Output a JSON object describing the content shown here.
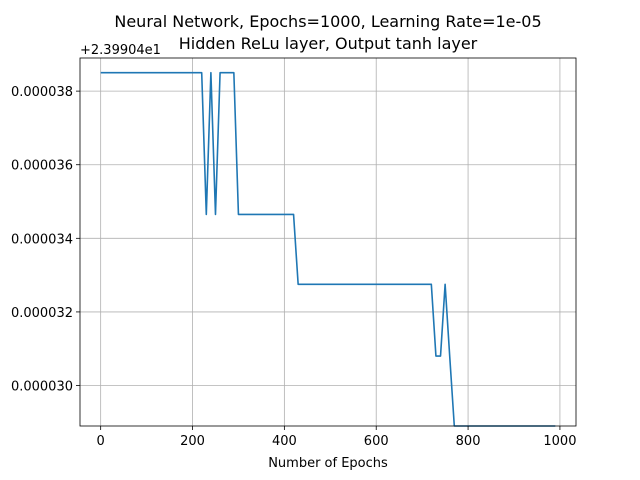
{
  "chart_data": {
    "type": "line",
    "title": "Neural Network, Epochs=1000, Learning Rate=1e-05",
    "subtitle": "Hidden ReLu layer, Output tanh layer",
    "xlabel": "Number of Epochs",
    "ylabel": "",
    "y_offset_text": "+2.39904e1",
    "xlim": [
      -45,
      1035
    ],
    "ylim": [
      2.89e-05,
      3.89e-05
    ],
    "xticks": [
      0,
      200,
      400,
      600,
      800,
      1000
    ],
    "xtick_labels": [
      "0",
      "200",
      "400",
      "600",
      "800",
      "1000"
    ],
    "yticks": [
      3e-05,
      3.2e-05,
      3.4e-05,
      3.6e-05,
      3.8e-05
    ],
    "ytick_labels": [
      "0.000030",
      "0.000032",
      "0.000034",
      "0.000036",
      "0.000038"
    ],
    "grid": true,
    "series": [
      {
        "color": "#1f77b4",
        "x": [
          0,
          220,
          230,
          240,
          250,
          260,
          290,
          300,
          420,
          430,
          720,
          730,
          740,
          750,
          760,
          770,
          990
        ],
        "y": [
          3.85e-05,
          3.85e-05,
          3.465e-05,
          3.85e-05,
          3.465e-05,
          3.85e-05,
          3.85e-05,
          3.465e-05,
          3.465e-05,
          3.275e-05,
          3.275e-05,
          3.08e-05,
          3.08e-05,
          3.275e-05,
          3.08e-05,
          2.89e-05,
          2.89e-05
        ]
      }
    ]
  }
}
